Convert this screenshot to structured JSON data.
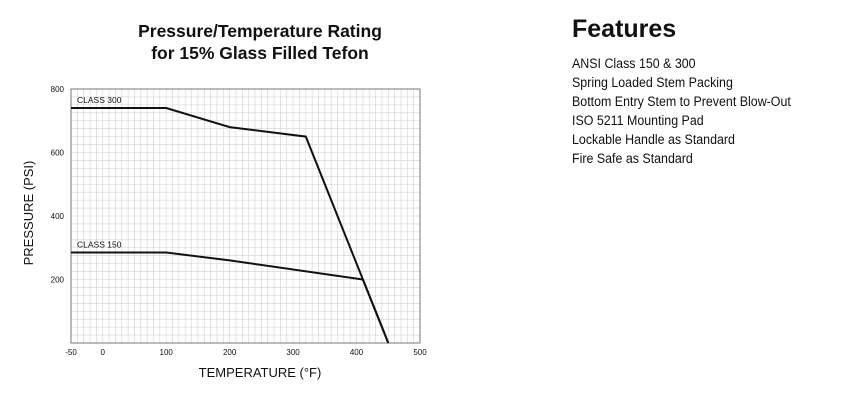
{
  "chart_data": {
    "type": "line",
    "title": [
      "Pressure/Temperature Rating",
      "for 15% Glass Filled Tefon"
    ],
    "xlabel": "TEMPERATURE (°F)",
    "ylabel": "PRESSURE (PSI)",
    "xlim": [
      -50,
      500
    ],
    "ylim": [
      0,
      800
    ],
    "x_ticks": [
      -50,
      0,
      100,
      200,
      300,
      400,
      500
    ],
    "y_ticks": [
      200,
      400,
      600,
      800
    ],
    "grid": true,
    "series": [
      {
        "name": "CLASS 300",
        "x": [
          -50,
          100,
          200,
          320,
          450
        ],
        "y": [
          740,
          740,
          680,
          650,
          0
        ]
      },
      {
        "name": "CLASS 150",
        "x": [
          -50,
          100,
          200,
          410,
          450
        ],
        "y": [
          285,
          285,
          260,
          200,
          0
        ]
      }
    ]
  },
  "features": {
    "heading": "Features",
    "items": [
      "ANSI Class 150 & 300",
      "Spring Loaded Stem Packing",
      "Bottom Entry Stem to Prevent Blow-Out",
      "ISO 5211 Mounting Pad",
      "Lockable Handle as Standard",
      "Fire Safe as Standard"
    ]
  }
}
